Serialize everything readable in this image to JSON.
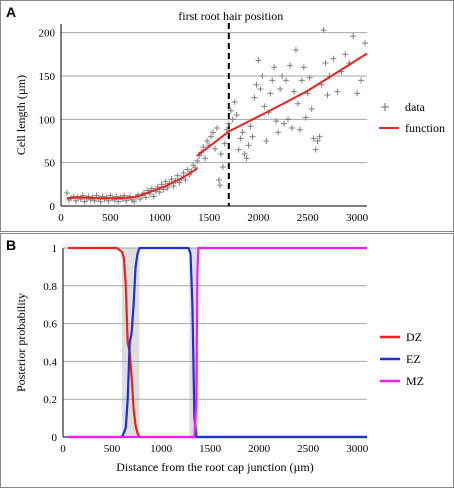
{
  "colors": {
    "data_marker": "#7f7f7f",
    "function_line": "#e8241f",
    "dashed_line": "#000000",
    "grid": "#a6a6a6",
    "dz": "#e8241f",
    "ez": "#1f2fd6",
    "mz": "#f01ef0",
    "band": "#c8c8c8"
  },
  "chart_data": [
    {
      "type": "scatter",
      "panel_label": "A",
      "ylabel": "Cell length (µm)",
      "xlabel": "",
      "annotation": "first root hair position",
      "annotation_x": 1700,
      "xlim": [
        0,
        3100
      ],
      "ylim": [
        0,
        210
      ],
      "xticks": [
        0,
        500,
        1000,
        1500,
        2000,
        2500,
        3000
      ],
      "yticks": [
        0,
        50,
        100,
        150,
        200
      ],
      "grid": "horizontal",
      "legend_position": "right",
      "legend": [
        "data",
        "function"
      ],
      "series": [
        {
          "name": "data",
          "style": "plus-marker",
          "points": [
            [
              60,
              15
            ],
            [
              80,
              7
            ],
            [
              100,
              9
            ],
            [
              130,
              11
            ],
            [
              150,
              6
            ],
            [
              170,
              10
            ],
            [
              200,
              8
            ],
            [
              220,
              12
            ],
            [
              240,
              5
            ],
            [
              260,
              9
            ],
            [
              280,
              11
            ],
            [
              300,
              7
            ],
            [
              320,
              10
            ],
            [
              340,
              6
            ],
            [
              360,
              12
            ],
            [
              380,
              9
            ],
            [
              400,
              5
            ],
            [
              420,
              11
            ],
            [
              440,
              8
            ],
            [
              460,
              10
            ],
            [
              480,
              6
            ],
            [
              500,
              12
            ],
            [
              520,
              9
            ],
            [
              540,
              7
            ],
            [
              560,
              11
            ],
            [
              580,
              5
            ],
            [
              600,
              10
            ],
            [
              620,
              8
            ],
            [
              640,
              12
            ],
            [
              660,
              6
            ],
            [
              680,
              9
            ],
            [
              700,
              11
            ],
            [
              720,
              7
            ],
            [
              740,
              5
            ],
            [
              760,
              10
            ],
            [
              780,
              13
            ],
            [
              800,
              8
            ],
            [
              820,
              12
            ],
            [
              840,
              15
            ],
            [
              860,
              10
            ],
            [
              880,
              18
            ],
            [
              900,
              14
            ],
            [
              920,
              20
            ],
            [
              940,
              11
            ],
            [
              960,
              17
            ],
            [
              980,
              22
            ],
            [
              1000,
              16
            ],
            [
              1020,
              25
            ],
            [
              1040,
              19
            ],
            [
              1060,
              28
            ],
            [
              1080,
              21
            ],
            [
              1100,
              26
            ],
            [
              1120,
              31
            ],
            [
              1140,
              23
            ],
            [
              1160,
              29
            ],
            [
              1180,
              35
            ],
            [
              1200,
              27
            ],
            [
              1220,
              32
            ],
            [
              1240,
              38
            ],
            [
              1260,
              30
            ],
            [
              1280,
              42
            ],
            [
              1300,
              36
            ],
            [
              1320,
              40
            ],
            [
              1340,
              47
            ],
            [
              1360,
              44
            ],
            [
              1380,
              52
            ],
            [
              1400,
              58
            ],
            [
              1420,
              62
            ],
            [
              1440,
              68
            ],
            [
              1460,
              55
            ],
            [
              1480,
              75
            ],
            [
              1500,
              70
            ],
            [
              1520,
              80
            ],
            [
              1540,
              85
            ],
            [
              1560,
              66
            ],
            [
              1580,
              90
            ],
            [
              1600,
              30
            ],
            [
              1610,
              24
            ],
            [
              1620,
              60
            ],
            [
              1640,
              45
            ],
            [
              1660,
              72
            ],
            [
              1680,
              88
            ],
            [
              1700,
              95
            ],
            [
              1720,
              110
            ],
            [
              1740,
              100
            ],
            [
              1760,
              120
            ],
            [
              1780,
              105
            ],
            [
              1800,
              65
            ],
            [
              1820,
              78
            ],
            [
              1840,
              85
            ],
            [
              1860,
              60
            ],
            [
              1880,
              55
            ],
            [
              1900,
              70
            ],
            [
              1920,
              92
            ],
            [
              1940,
              80
            ],
            [
              1960,
              125
            ],
            [
              1980,
              140
            ],
            [
              2000,
              168
            ],
            [
              2020,
              135
            ],
            [
              2040,
              150
            ],
            [
              2060,
              115
            ],
            [
              2080,
              75
            ],
            [
              2100,
              108
            ],
            [
              2120,
              130
            ],
            [
              2140,
              145
            ],
            [
              2160,
              160
            ],
            [
              2180,
              98
            ],
            [
              2200,
              85
            ],
            [
              2220,
              135
            ],
            [
              2240,
              150
            ],
            [
              2260,
              95
            ],
            [
              2280,
              145
            ],
            [
              2300,
              100
            ],
            [
              2320,
              162
            ],
            [
              2340,
              90
            ],
            [
              2360,
              132
            ],
            [
              2380,
              180
            ],
            [
              2400,
              118
            ],
            [
              2420,
              88
            ],
            [
              2440,
              145
            ],
            [
              2460,
              160
            ],
            [
              2480,
              102
            ],
            [
              2500,
              130
            ],
            [
              2520,
              148
            ],
            [
              2540,
              112
            ],
            [
              2560,
              78
            ],
            [
              2580,
              65
            ],
            [
              2600,
              75
            ],
            [
              2620,
              80
            ],
            [
              2640,
              140
            ],
            [
              2660,
              203
            ],
            [
              2680,
              165
            ],
            [
              2700,
              128
            ],
            [
              2720,
              150
            ],
            [
              2760,
              170
            ],
            [
              2800,
              132
            ],
            [
              2840,
              155
            ],
            [
              2880,
              175
            ],
            [
              2920,
              165
            ],
            [
              2960,
              196
            ],
            [
              3000,
              130
            ],
            [
              3040,
              145
            ],
            [
              3080,
              188
            ]
          ]
        },
        {
          "name": "function",
          "style": "line",
          "segments": [
            [
              [
                60,
                9
              ],
              [
                180,
                10
              ],
              [
                360,
                9
              ],
              [
                560,
                9
              ],
              [
                740,
                10
              ]
            ],
            [
              [
                740,
                10
              ],
              [
                900,
                16
              ],
              [
                1060,
                23
              ],
              [
                1220,
                32
              ],
              [
                1380,
                43
              ]
            ],
            [
              [
                1380,
                58
              ],
              [
                1700,
                86
              ],
              [
                2100,
                109
              ],
              [
                2500,
                133
              ],
              [
                2850,
                158
              ],
              [
                3100,
                176
              ]
            ]
          ]
        }
      ]
    },
    {
      "type": "line",
      "panel_label": "B",
      "ylabel": "Posterior probability",
      "xlabel": "Distance from the root cap junction (µm)",
      "xlim": [
        0,
        3100
      ],
      "ylim": [
        0,
        1
      ],
      "xticks": [
        0,
        500,
        1000,
        1500,
        2000,
        2500,
        3000
      ],
      "yticks": [
        0,
        0.2,
        0.4,
        0.6,
        0.8,
        1
      ],
      "grid": "horizontal",
      "legend_position": "right",
      "legend": [
        "DZ",
        "EZ",
        "MZ"
      ],
      "uncertainty_bands": [
        [
          600,
          780
        ],
        [
          1290,
          1380
        ]
      ],
      "series": [
        {
          "name": "DZ",
          "x": [
            50,
            550,
            600,
            620,
            640,
            660,
            680,
            700,
            720,
            740,
            760,
            780,
            800,
            1400,
            3100
          ],
          "y": [
            1,
            1,
            0.98,
            0.95,
            0.8,
            0.5,
            0.45,
            0.32,
            0.15,
            0.06,
            0.02,
            0,
            0,
            0,
            0
          ]
        },
        {
          "name": "EZ",
          "x": [
            50,
            600,
            620,
            640,
            660,
            680,
            700,
            720,
            740,
            760,
            780,
            800,
            1280,
            1300,
            1320,
            1340,
            1360,
            1380,
            3100
          ],
          "y": [
            0,
            0,
            0.02,
            0.05,
            0.2,
            0.5,
            0.55,
            0.7,
            0.9,
            0.97,
            1,
            1,
            1,
            0.97,
            0.7,
            0.1,
            0,
            0,
            0
          ]
        },
        {
          "name": "MZ",
          "x": [
            50,
            1320,
            1340,
            1360,
            1370,
            1380,
            1400,
            3100
          ],
          "y": [
            0,
            0,
            0,
            0.2,
            0.85,
            1,
            1,
            1
          ]
        }
      ]
    }
  ]
}
